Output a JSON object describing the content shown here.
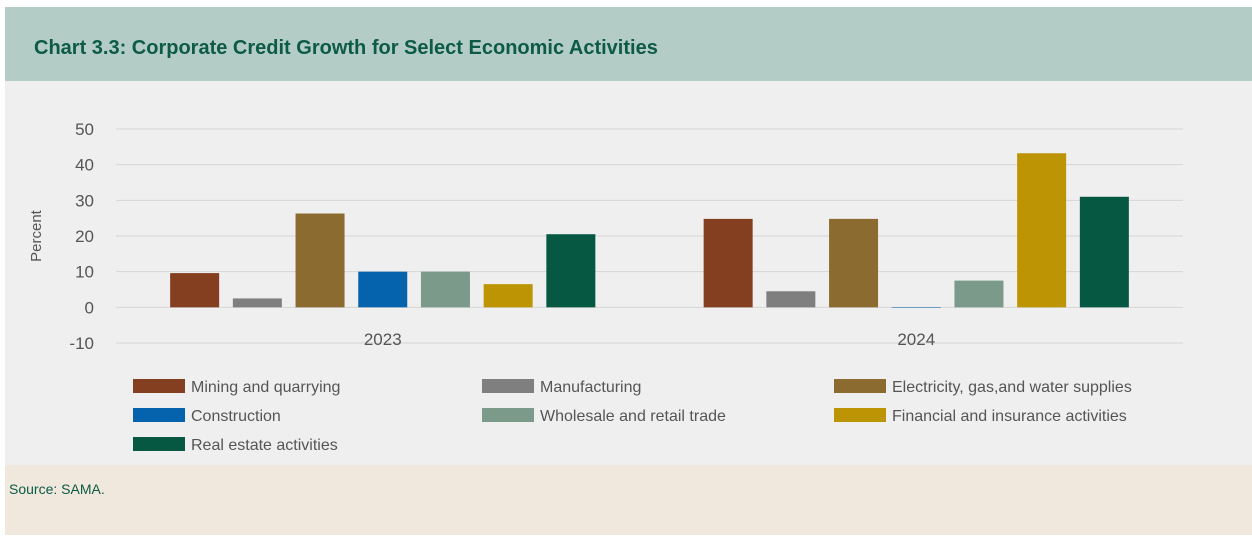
{
  "title": "Chart 3.3: Corporate Credit Growth for Select Economic Activities",
  "source": "Source: SAMA.",
  "chart_data": {
    "type": "bar",
    "categories": [
      "2023",
      "2024"
    ],
    "ylabel": "Percent",
    "ylim": [
      -10,
      50
    ],
    "yticks": [
      50,
      40,
      30,
      20,
      10,
      0,
      -10
    ],
    "grid": true,
    "legend_position": "bottom",
    "series": [
      {
        "name": "Mining and quarrying",
        "color": "#843f20",
        "values": [
          9.6,
          24.8
        ]
      },
      {
        "name": "Manufacturing",
        "color": "#7f7f7f",
        "values": [
          2.5,
          4.5
        ]
      },
      {
        "name": "Electricity, gas,and water supplies",
        "color": "#8c6b30",
        "values": [
          26.3,
          24.8
        ]
      },
      {
        "name": "Construction",
        "color": "#0563ad",
        "values": [
          10.0,
          0.0
        ]
      },
      {
        "name": "Wholesale and retail trade",
        "color": "#7b9a8a",
        "values": [
          10.0,
          7.5
        ]
      },
      {
        "name": "Financial and insurance activities",
        "color": "#bd9404",
        "values": [
          6.5,
          43.2
        ]
      },
      {
        "name": "Real estate activities",
        "color": "#075843",
        "values": [
          20.5,
          31.0
        ]
      }
    ]
  }
}
